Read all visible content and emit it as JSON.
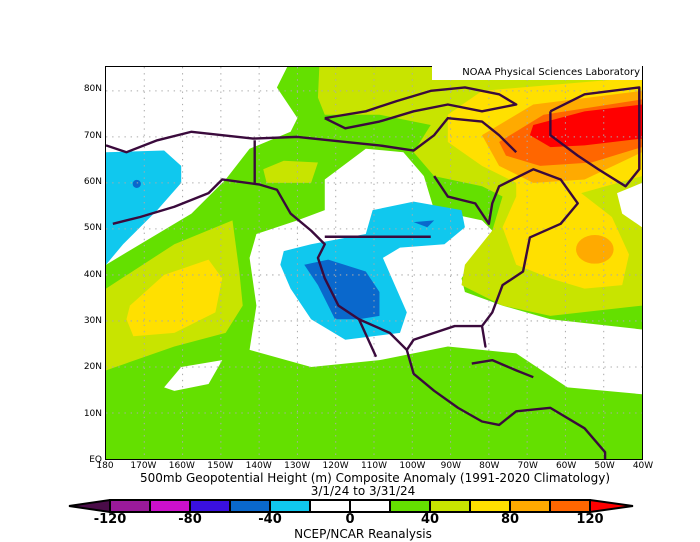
{
  "credit": "NOAA Physical Sciences Laboratory",
  "title": "500mb Geopotential Height (m) Composite Anomaly (1991-2020 Climatology)",
  "date_range": "3/1/24  to 3/31/24",
  "source": "NCEP/NCAR Reanalysis",
  "x_ticks": [
    "180",
    "170W",
    "160W",
    "150W",
    "140W",
    "130W",
    "120W",
    "110W",
    "100W",
    "90W",
    "80W",
    "70W",
    "60W",
    "50W",
    "40W"
  ],
  "y_ticks": [
    "EQ",
    "10N",
    "20N",
    "30N",
    "40N",
    "50N",
    "60N",
    "70N",
    "80N"
  ],
  "colorbar": {
    "labels": [
      "-120",
      "-80",
      "-40",
      "0",
      "40",
      "80",
      "120"
    ],
    "levels": [
      -120,
      -100,
      -80,
      -60,
      -40,
      -20,
      0,
      20,
      40,
      60,
      80,
      100,
      120
    ],
    "colors": [
      "#9a1a9a",
      "#cc10cc",
      "#3a10e0",
      "#0a68cc",
      "#10c8ee",
      "#ffffff",
      "#ffffff",
      "#64e000",
      "#c8e400",
      "#ffe000",
      "#ffaa00",
      "#ff6600"
    ],
    "low_color": "#4a0c48",
    "high_color": "#ff0000"
  },
  "fill_colors": {
    "green": "#64e000",
    "yellowgreen": "#c8e400",
    "yellow": "#ffe000",
    "orange": "#ffaa00",
    "darkorange": "#ff6600",
    "red": "#ff0000",
    "cyan": "#10c8ee",
    "blue": "#0a68cc",
    "coast": "#3a0a3c"
  }
}
